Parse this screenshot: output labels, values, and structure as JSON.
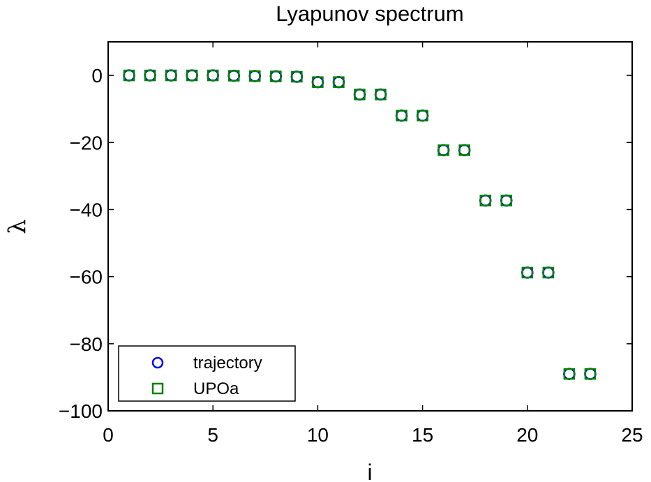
{
  "chart_data": {
    "type": "scatter",
    "title": "Lyapunov spectrum",
    "xlabel": "i",
    "ylabel": "λ",
    "xlim": [
      0,
      25
    ],
    "ylim": [
      -100,
      10
    ],
    "x_ticks": [
      0,
      5,
      10,
      15,
      20,
      25
    ],
    "y_ticks": [
      0,
      -20,
      -40,
      -60,
      -80,
      -100
    ],
    "x_tick_labels": [
      "0",
      "5",
      "10",
      "15",
      "20",
      "25"
    ],
    "y_tick_labels": [
      "0",
      "−20",
      "−40",
      "−60",
      "−80",
      "−100"
    ],
    "grid": false,
    "legend_position": "bottom-left",
    "series": [
      {
        "name": "trajectory",
        "marker": "circle",
        "color": "#0000ff",
        "x": [
          1,
          2,
          3,
          4,
          5,
          6,
          7,
          8,
          9,
          10,
          11,
          12,
          13,
          14,
          15,
          16,
          17,
          18,
          19,
          20,
          21,
          22,
          23
        ],
        "y": [
          0,
          0,
          0,
          0,
          0,
          -0.1,
          -0.2,
          -0.3,
          -0.4,
          -2,
          -2,
          -5.7,
          -5.7,
          -12,
          -12,
          -22.3,
          -22.3,
          -37.3,
          -37.3,
          -58.8,
          -58.8,
          -89,
          -89
        ]
      },
      {
        "name": "UPOa",
        "marker": "square",
        "color": "#008000",
        "x": [
          1,
          2,
          3,
          4,
          5,
          6,
          7,
          8,
          9,
          10,
          11,
          12,
          13,
          14,
          15,
          16,
          17,
          18,
          19,
          20,
          21,
          22,
          23
        ],
        "y": [
          0,
          0,
          0,
          0,
          0,
          -0.1,
          -0.2,
          -0.3,
          -0.4,
          -2,
          -2,
          -5.7,
          -5.7,
          -12,
          -12,
          -22.3,
          -22.3,
          -37.3,
          -37.3,
          -58.8,
          -58.8,
          -89,
          -89
        ]
      }
    ]
  }
}
